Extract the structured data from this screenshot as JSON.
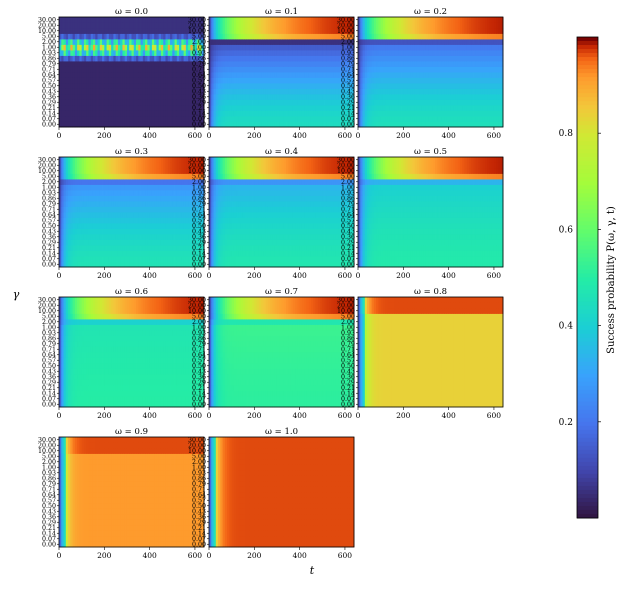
{
  "chart_data": {
    "type": "heatmap",
    "panels": [
      {
        "title": "ω = 0.0",
        "omega": 0.0
      },
      {
        "title": "ω = 0.1",
        "omega": 0.1
      },
      {
        "title": "ω = 0.2",
        "omega": 0.2
      },
      {
        "title": "ω = 0.3",
        "omega": 0.3
      },
      {
        "title": "ω = 0.4",
        "omega": 0.4
      },
      {
        "title": "ω = 0.5",
        "omega": 0.5
      },
      {
        "title": "ω = 0.6",
        "omega": 0.6
      },
      {
        "title": "ω = 0.7",
        "omega": 0.7
      },
      {
        "title": "ω = 0.8",
        "omega": 0.8
      },
      {
        "title": "ω = 0.9",
        "omega": 0.9
      },
      {
        "title": "ω = 1.0",
        "omega": 1.0
      }
    ],
    "x_ticks": [
      "0",
      "200",
      "400",
      "600"
    ],
    "x_tick_values": [
      0,
      200,
      400,
      600
    ],
    "xlim": [
      0,
      640
    ],
    "y_ticks": [
      "0.00",
      "0.07",
      "0.14",
      "0.21",
      "0.29",
      "0.36",
      "0.43",
      "0.50",
      "0.57",
      "0.64",
      "0.71",
      "0.79",
      "0.86",
      "0.93",
      "1.00",
      "2.00",
      "5.00",
      "10.00",
      "20.00",
      "30.00"
    ],
    "xlabel": "t",
    "ylabel": "γ",
    "colorbar": {
      "label": "Success probability P(ω, γ, t)",
      "ticks": [
        "0.2",
        "0.4",
        "0.6",
        "0.8"
      ],
      "tick_values": [
        0.2,
        0.4,
        0.6,
        0.8
      ],
      "range": [
        0.0,
        1.0
      ],
      "colormap": "turbo"
    },
    "layout": "4 rows × 3 columns, last cell empty",
    "approx_steady_values": [
      {
        "omega": 0.0,
        "low_gamma": 0.03,
        "gamma_near_1": 0.8,
        "high_gamma": 0.05
      },
      {
        "omega": 0.1,
        "low_gamma": 0.5,
        "gamma_near_1": 0.05,
        "high_gamma": 0.95
      },
      {
        "omega": 0.2,
        "low_gamma": 0.45,
        "gamma_near_1": 0.1,
        "high_gamma": 0.95
      },
      {
        "omega": 0.3,
        "low_gamma": 0.42,
        "gamma_near_1": 0.15,
        "high_gamma": 0.95
      },
      {
        "omega": 0.4,
        "low_gamma": 0.4,
        "gamma_near_1": 0.25,
        "high_gamma": 0.95
      },
      {
        "omega": 0.5,
        "low_gamma": 0.42,
        "gamma_near_1": 0.3,
        "high_gamma": 0.95
      },
      {
        "omega": 0.6,
        "low_gamma": 0.5,
        "gamma_near_1": 0.38,
        "high_gamma": 0.95
      },
      {
        "omega": 0.7,
        "low_gamma": 0.55,
        "gamma_near_1": 0.52,
        "high_gamma": 0.95
      },
      {
        "omega": 0.8,
        "low_gamma": 0.82,
        "gamma_near_1": 0.85,
        "high_gamma": 0.97
      },
      {
        "omega": 0.9,
        "low_gamma": 0.9,
        "gamma_near_1": 0.9,
        "high_gamma": 0.95
      },
      {
        "omega": 1.0,
        "low_gamma": 0.97,
        "gamma_near_1": 0.97,
        "high_gamma": 0.97
      }
    ]
  }
}
